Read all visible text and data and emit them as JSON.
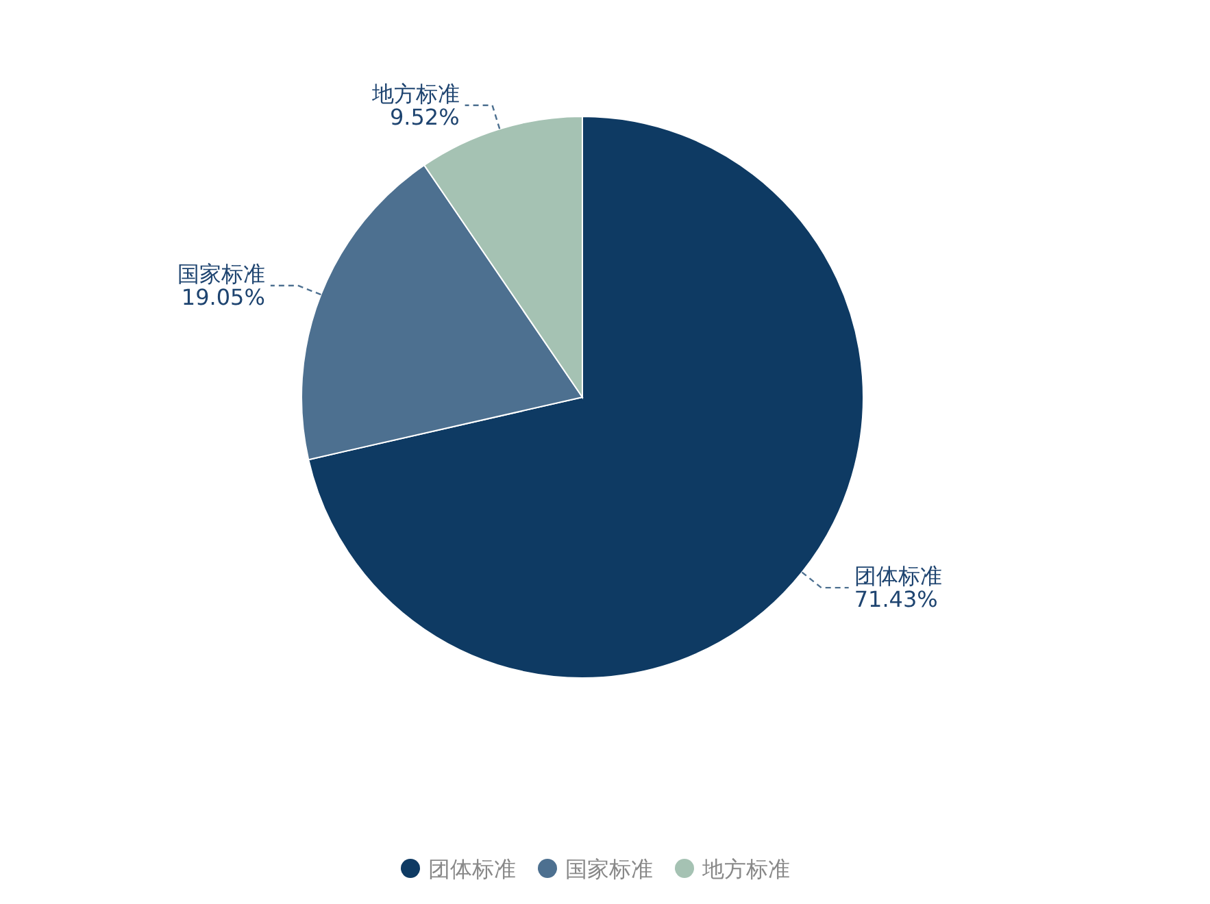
{
  "chart_data": {
    "type": "pie",
    "categories": [
      "团体标准",
      "国家标准",
      "地方标准"
    ],
    "values": [
      71.43,
      19.05,
      9.52
    ],
    "colors": [
      "#0e3a63",
      "#4d7090",
      "#a5c2b3"
    ],
    "value_labels": [
      "71.43%",
      "19.05%",
      "9.52%"
    ],
    "legend": "bottom"
  }
}
